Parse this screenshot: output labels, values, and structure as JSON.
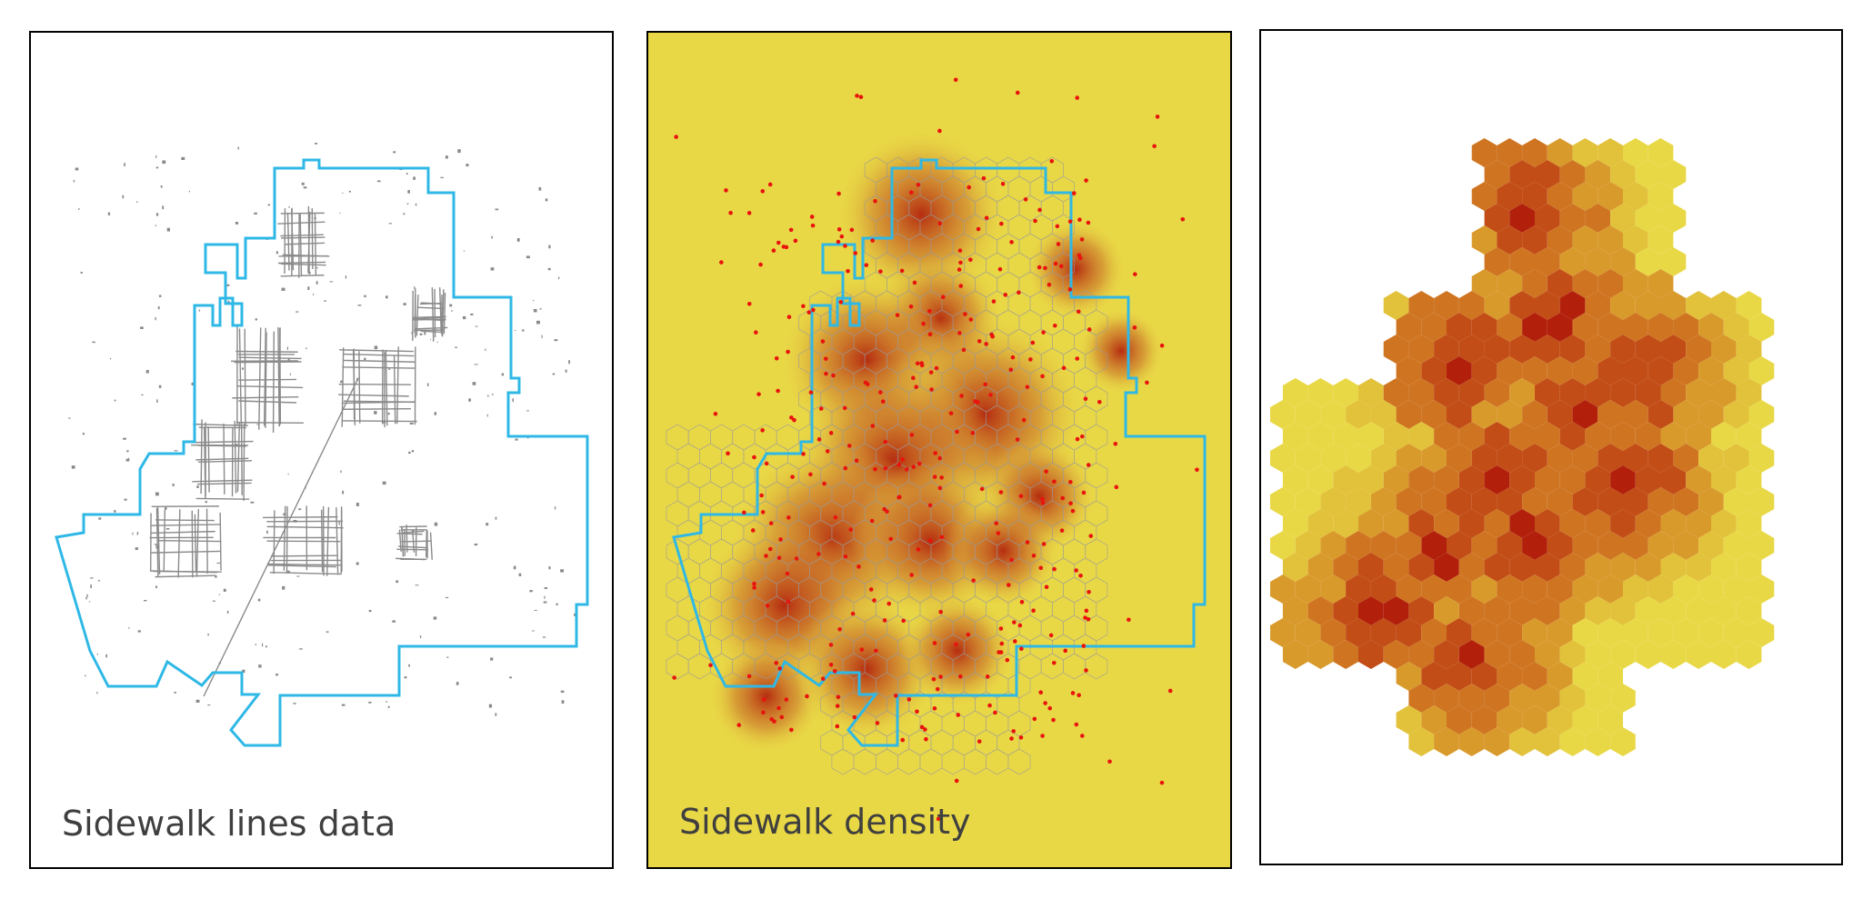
{
  "panels": [
    {
      "id": "sidewalk-lines",
      "caption": "Sidewalk lines data"
    },
    {
      "id": "sidewalk-density",
      "caption": "Sidewalk density"
    },
    {
      "id": "hexbin-density",
      "caption": ""
    }
  ],
  "colors": {
    "boundary": "#2fb8e6",
    "sidewalk": "#8a8a8a",
    "density_background": "#e9d846",
    "density_hot": "#b01a0a",
    "points": "#e8140e",
    "hex_grid": "#9a9a9a",
    "hex_ramp": [
      "#e9d846",
      "#e2c23a",
      "#d99a2c",
      "#cf7522",
      "#c24d17",
      "#b2200c"
    ]
  },
  "legend": []
}
